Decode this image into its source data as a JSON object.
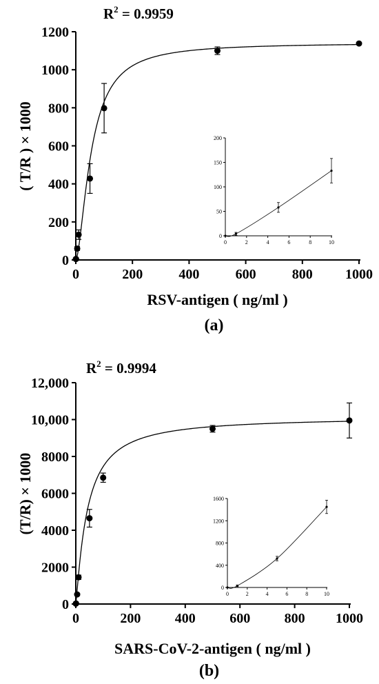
{
  "chart_data": [
    {
      "type": "scatter",
      "panel_label": "(a)",
      "annotation": {
        "base": "R",
        "sup": "2",
        "rest": " = 0.9959"
      },
      "xlabel": "RSV-antigen ( ng/ml )",
      "ylabel": "( T/R ) × 1000",
      "xlim": [
        0,
        1000
      ],
      "ylim": [
        0,
        1200
      ],
      "xticks": [
        "0",
        "200",
        "400",
        "600",
        "800",
        "1000"
      ],
      "yticks": [
        "0",
        "200",
        "400",
        "600",
        "800",
        "1000",
        "1200"
      ],
      "points": [
        {
          "x": 0,
          "y": 5,
          "err": 0
        },
        {
          "x": 1,
          "y": 5,
          "err": 2
        },
        {
          "x": 5,
          "y": 60,
          "err": 10
        },
        {
          "x": 10,
          "y": 133,
          "err": 25
        },
        {
          "x": 50,
          "y": 428,
          "err": 78
        },
        {
          "x": 100,
          "y": 798,
          "err": 130
        },
        {
          "x": 500,
          "y": 1100,
          "err": 20
        },
        {
          "x": 1000,
          "y": 1138,
          "err": 5
        }
      ],
      "fit_curve": {
        "model": "hill",
        "top": 1142,
        "ec50": 55,
        "n": 1.65
      },
      "inset": {
        "xlim": [
          0,
          10
        ],
        "ylim": [
          0,
          200
        ],
        "xticks": [
          "0",
          "2",
          "4",
          "6",
          "8",
          "10"
        ],
        "yticks": [
          "0",
          "50",
          "100",
          "150",
          "200"
        ],
        "points": [
          {
            "x": 0,
            "y": 0,
            "err": 0
          },
          {
            "x": 1,
            "y": 4,
            "err": 3
          },
          {
            "x": 5,
            "y": 58,
            "err": 10
          },
          {
            "x": 10,
            "y": 133,
            "err": 25
          }
        ]
      }
    },
    {
      "type": "scatter",
      "panel_label": "(b)",
      "annotation": {
        "base": "R",
        "sup": "2",
        "rest": " = 0.9994"
      },
      "xlabel": "SARS-CoV-2-antigen ( ng/ml )",
      "ylabel": "(T/R) × 1000",
      "xlim": [
        0,
        1000
      ],
      "ylim": [
        0,
        12000
      ],
      "xticks": [
        "0",
        "200",
        "400",
        "600",
        "800",
        "1000"
      ],
      "yticks": [
        "0",
        "2000",
        "4000",
        "6000",
        "8000",
        "10,000",
        "12,000"
      ],
      "points": [
        {
          "x": 0,
          "y": 20,
          "err": 0
        },
        {
          "x": 1,
          "y": 30,
          "err": 10
        },
        {
          "x": 5,
          "y": 520,
          "err": 40
        },
        {
          "x": 10,
          "y": 1450,
          "err": 120
        },
        {
          "x": 50,
          "y": 4650,
          "err": 480
        },
        {
          "x": 100,
          "y": 6850,
          "err": 250
        },
        {
          "x": 500,
          "y": 9500,
          "err": 180
        },
        {
          "x": 1000,
          "y": 9950,
          "err": 950
        }
      ],
      "fit_curve": {
        "model": "hill",
        "top": 10150,
        "ec50": 42,
        "n": 1.17
      },
      "inset": {
        "xlim": [
          0,
          10
        ],
        "ylim": [
          0,
          1600
        ],
        "xticks": [
          "0",
          "2",
          "4",
          "6",
          "8",
          "10"
        ],
        "yticks": [
          "0",
          "400",
          "800",
          "1200",
          "1600"
        ],
        "points": [
          {
            "x": 0,
            "y": 0,
            "err": 0
          },
          {
            "x": 1,
            "y": 30,
            "err": 15
          },
          {
            "x": 5,
            "y": 520,
            "err": 40
          },
          {
            "x": 10,
            "y": 1450,
            "err": 120
          }
        ]
      }
    }
  ]
}
